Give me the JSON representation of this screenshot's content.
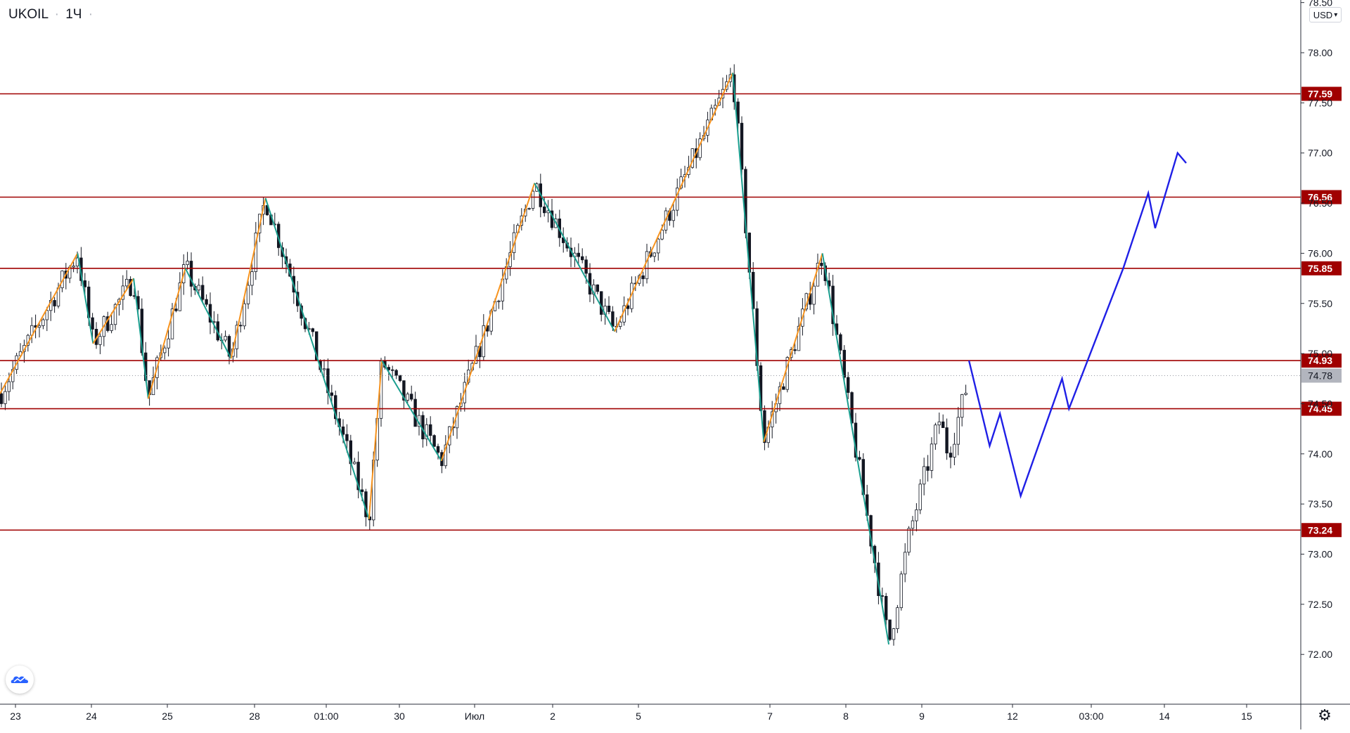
{
  "header": {
    "symbol": "UKOIL",
    "interval": "1Ч",
    "separator": "·"
  },
  "currency_button": {
    "label": "USD",
    "chevron": "chevron-down-icon"
  },
  "settings": {
    "icon": "gear-icon"
  },
  "logo": {
    "icon": "tradingview-cloud-icon"
  },
  "colors": {
    "background": "#ffffff",
    "level_line": "#a00000",
    "zigzag_up": "#f7931e",
    "zigzag_down": "#1a9e8f",
    "forecast": "#1f1fe6",
    "candle": "#131722",
    "axis_text": "#131722"
  },
  "chart_data": {
    "type": "candlestick",
    "title": "",
    "ylim": [
      71.5,
      78.5
    ],
    "y_ticks": [
      "78.50",
      "78.00",
      "77.50",
      "77.00",
      "76.50",
      "76.00",
      "75.50",
      "75.00",
      "74.50",
      "74.00",
      "73.50",
      "73.00",
      "72.50",
      "72.00"
    ],
    "x_ticks": [
      "23",
      "24",
      "25",
      "28",
      "01:00",
      "30",
      "Июл",
      "2",
      "5",
      "7",
      "8",
      "9",
      "12",
      "03:00",
      "14",
      "15"
    ],
    "horizontal_levels": [
      77.59,
      76.56,
      75.85,
      74.93,
      74.45,
      73.24
    ],
    "level_labels": [
      "77.59",
      "76.56",
      "75.85",
      "74.93",
      "74.45",
      "73.24"
    ],
    "current_price": 74.78,
    "current_price_label": "74.78",
    "zigzag": [
      [
        0,
        74.6
      ],
      [
        90,
        76.0
      ],
      [
        108,
        75.1
      ],
      [
        155,
        75.75
      ],
      [
        172,
        74.55
      ],
      [
        215,
        75.85
      ],
      [
        268,
        74.95
      ],
      [
        308,
        76.55
      ],
      [
        369,
        74.93
      ],
      [
        428,
        73.35
      ],
      [
        443,
        74.93
      ],
      [
        512,
        73.93
      ],
      [
        620,
        76.7
      ],
      [
        713,
        75.22
      ],
      [
        850,
        77.8
      ],
      [
        886,
        74.12
      ],
      [
        954,
        76.0
      ],
      [
        1031,
        72.1
      ]
    ],
    "forecast_path": [
      [
        1124,
        74.93
      ],
      [
        1148,
        74.08
      ],
      [
        1160,
        74.4
      ],
      [
        1184,
        73.58
      ],
      [
        1232,
        74.75
      ],
      [
        1240,
        74.45
      ],
      [
        1303,
        75.85
      ],
      [
        1332,
        76.6
      ],
      [
        1340,
        76.25
      ],
      [
        1366,
        77.0
      ],
      [
        1376,
        76.9
      ]
    ]
  }
}
